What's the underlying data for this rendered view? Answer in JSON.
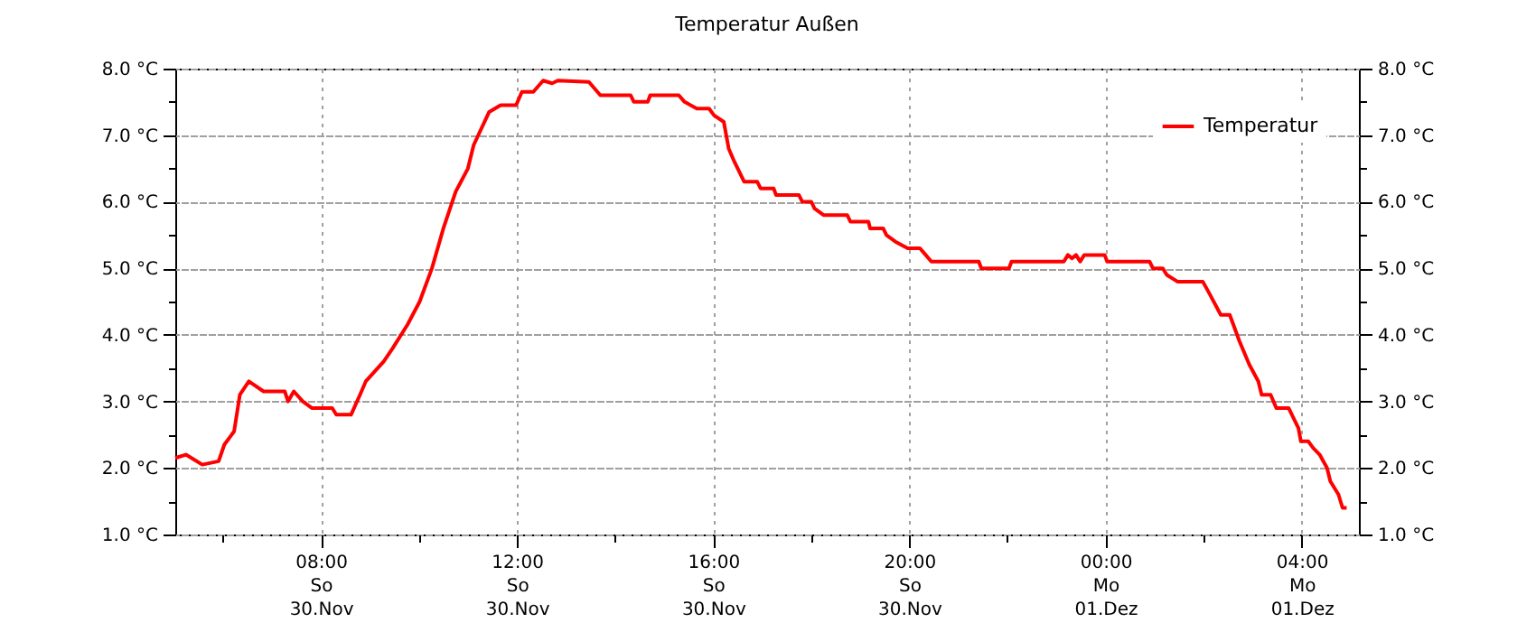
{
  "chart_data": {
    "type": "line",
    "title": "Temperatur Außen",
    "x": [
      "--11-30T05:02",
      "--11-30T05:15",
      "--11-30T05:35",
      "--11-30T05:55",
      "--11-30T06:02",
      "--11-30T06:14",
      "--11-30T06:21",
      "--11-30T06:32",
      "--11-30T06:50",
      "--11-30T07:16",
      "--11-30T07:20",
      "--11-30T07:27",
      "--11-30T07:38",
      "--11-30T07:49",
      "--11-30T08:14",
      "--11-30T08:19",
      "--11-30T08:37",
      "--11-30T08:48",
      "--11-30T08:55",
      "--11-30T09:17",
      "--11-30T09:28",
      "--11-30T09:46",
      "--11-30T10:01",
      "--11-30T10:16",
      "--11-30T10:30",
      "--11-30T10:45",
      "--11-30T11:00",
      "--11-30T11:07",
      "--11-30T11:26",
      "--11-30T11:40",
      "--11-30T11:59",
      "--11-30T12:06",
      "--11-30T12:20",
      "--11-30T12:32",
      "--11-30T12:43",
      "--11-30T12:50",
      "--11-30T13:28",
      "--11-30T13:42",
      "--11-30T14:19",
      "--11-30T14:23",
      "--11-30T14:40",
      "--11-30T14:43",
      "--11-30T15:18",
      "--11-30T15:25",
      "--11-30T15:40",
      "--11-30T15:55",
      "--11-30T16:01",
      "--11-30T16:13",
      "--11-30T16:19",
      "--11-30T16:26",
      "--11-30T16:38",
      "--11-30T16:54",
      "--11-30T16:58",
      "--11-30T17:14",
      "--11-30T17:17",
      "--11-30T17:45",
      "--11-30T17:49",
      "--11-30T18:00",
      "--11-30T18:04",
      "--11-30T18:15",
      "--11-30T18:44",
      "--11-30T18:48",
      "--11-30T19:10",
      "--11-30T19:12",
      "--11-30T19:28",
      "--11-30T19:32",
      "--11-30T19:43",
      "--11-30T19:58",
      "--11-30T20:13",
      "--11-30T20:20",
      "--11-30T20:27",
      "--11-30T21:25",
      "--11-30T21:28",
      "--11-30T22:02",
      "--11-30T22:05",
      "--11-30T23:09",
      "--11-30T23:14",
      "--11-30T23:19",
      "--11-30T23:24",
      "--11-30T23:29",
      "--11-30T23:34",
      "--11-30T23:59",
      "--12-01T00:02",
      "--12-01T00:54",
      "--12-01T00:58",
      "--12-01T01:10",
      "--12-01T01:15",
      "--12-01T01:28",
      "--12-01T01:59",
      "--12-01T02:08",
      "--12-01T02:21",
      "--12-01T02:32",
      "--12-01T02:44",
      "--12-01T02:56",
      "--12-01T03:07",
      "--12-01T03:11",
      "--12-01T03:22",
      "--12-01T03:29",
      "--12-01T03:44",
      "--12-01T03:56",
      "--12-01T03:59",
      "--12-01T04:08",
      "--12-01T04:14",
      "--12-01T04:22",
      "--12-01T04:31",
      "--12-01T04:35",
      "--12-01T04:45",
      "--12-01T04:50",
      "--12-01T04:55"
    ],
    "series": [
      {
        "name": "Temperatur",
        "color": "#ff0000",
        "values": [
          2.15,
          2.2,
          2.05,
          2.1,
          2.35,
          2.55,
          3.1,
          3.3,
          3.15,
          3.15,
          3.0,
          3.15,
          3.0,
          2.9,
          2.9,
          2.8,
          2.8,
          3.1,
          3.3,
          3.6,
          3.8,
          4.15,
          4.5,
          5.0,
          5.6,
          6.15,
          6.5,
          6.85,
          7.35,
          7.45,
          7.45,
          7.65,
          7.65,
          7.82,
          7.78,
          7.82,
          7.8,
          7.6,
          7.6,
          7.5,
          7.5,
          7.6,
          7.6,
          7.5,
          7.4,
          7.4,
          7.3,
          7.2,
          6.8,
          6.6,
          6.3,
          6.3,
          6.2,
          6.2,
          6.1,
          6.1,
          6.0,
          6.0,
          5.9,
          5.8,
          5.8,
          5.7,
          5.7,
          5.6,
          5.6,
          5.5,
          5.4,
          5.3,
          5.3,
          5.2,
          5.1,
          5.1,
          5.0,
          5.0,
          5.1,
          5.1,
          5.2,
          5.15,
          5.2,
          5.1,
          5.2,
          5.2,
          5.1,
          5.1,
          5.0,
          5.0,
          4.9,
          4.8,
          4.8,
          4.6,
          4.3,
          4.3,
          3.9,
          3.55,
          3.3,
          3.1,
          3.1,
          2.9,
          2.9,
          2.6,
          2.4,
          2.4,
          2.3,
          2.2,
          2.0,
          1.8,
          1.6,
          1.4,
          1.4
        ]
      }
    ],
    "xlim": [
      "--11-30T05:02",
      "--12-01T05:10"
    ],
    "xticks": [
      {
        "value": "--11-30T06:00",
        "label": null
      },
      {
        "value": "--11-30T08:00",
        "label": "08:00\nSo\n30.Nov"
      },
      {
        "value": "--11-30T10:00",
        "label": null
      },
      {
        "value": "--11-30T12:00",
        "label": "12:00\nSo\n30.Nov"
      },
      {
        "value": "--11-30T14:00",
        "label": null
      },
      {
        "value": "--11-30T16:00",
        "label": "16:00\nSo\n30.Nov"
      },
      {
        "value": "--11-30T18:00",
        "label": null
      },
      {
        "value": "--11-30T20:00",
        "label": "20:00\nSo\n30.Nov"
      },
      {
        "value": "--11-30T22:00",
        "label": null
      },
      {
        "value": "--12-01T00:00",
        "label": "00:00\nMo\n01.Dez"
      },
      {
        "value": "--12-01T02:00",
        "label": null
      },
      {
        "value": "--12-01T04:00",
        "label": "04:00\nMo\n01.Dez"
      }
    ],
    "ylim": [
      1,
      8
    ],
    "yticks": [
      {
        "value": 1,
        "label": "1.0 °C"
      },
      {
        "value": 1.5,
        "label": null
      },
      {
        "value": 2,
        "label": "2.0 °C"
      },
      {
        "value": 2.5,
        "label": null
      },
      {
        "value": 3,
        "label": "3.0 °C"
      },
      {
        "value": 3.5,
        "label": null
      },
      {
        "value": 4,
        "label": "4.0 °C"
      },
      {
        "value": 4.5,
        "label": null
      },
      {
        "value": 5,
        "label": "5.0 °C"
      },
      {
        "value": 5.5,
        "label": null
      },
      {
        "value": 6,
        "label": "6.0 °C"
      },
      {
        "value": 6.5,
        "label": null
      },
      {
        "value": 7,
        "label": "7.0 °C"
      },
      {
        "value": 7.5,
        "label": null
      },
      {
        "value": 8,
        "label": "8.0 °C"
      }
    ],
    "y2lim": [
      1,
      8
    ],
    "y2ticks": [
      {
        "value": 1,
        "label": "1.0 °C"
      },
      {
        "value": 1.5,
        "label": null
      },
      {
        "value": 2,
        "label": "2.0 °C"
      },
      {
        "value": 2.5,
        "label": null
      },
      {
        "value": 3,
        "label": "3.0 °C"
      },
      {
        "value": 3.5,
        "label": null
      },
      {
        "value": 4,
        "label": "4.0 °C"
      },
      {
        "value": 4.5,
        "label": null
      },
      {
        "value": 5,
        "label": "5.0 °C"
      },
      {
        "value": 5.5,
        "label": null
      },
      {
        "value": 6,
        "label": "6.0 °C"
      },
      {
        "value": 6.5,
        "label": null
      },
      {
        "value": 7,
        "label": "7.0 °C"
      },
      {
        "value": 7.5,
        "label": null
      },
      {
        "value": 8,
        "label": "8.0 °C"
      }
    ],
    "grid": true,
    "legend": "top right"
  }
}
